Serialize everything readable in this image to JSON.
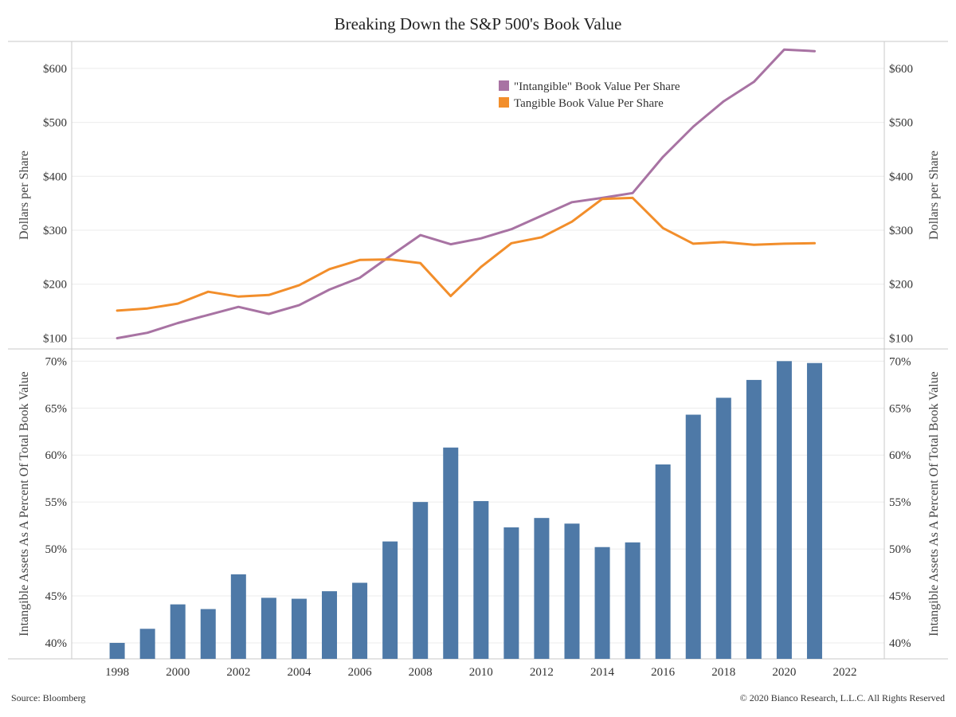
{
  "title": "Breaking Down the S&P 500's Book Value",
  "colors": {
    "intangible": "#a873a3",
    "tangible": "#f28e2b",
    "bar": "#4e79a7",
    "grid": "#ebebeb",
    "axis": "#c8c8c8"
  },
  "footer": {
    "source": "Source: Bloomberg",
    "copyright": "© 2020 Bianco Research, L.L.C. All Rights Reserved"
  },
  "chart_data": [
    {
      "type": "line",
      "ylabel": "Dollars per Share",
      "ylabel_right": "Dollars per Share",
      "ylim": [
        80,
        650
      ],
      "yticks": [
        100,
        200,
        300,
        400,
        500,
        600
      ],
      "ytick_labels": [
        "$100",
        "$200",
        "$300",
        "$400",
        "$500",
        "$600"
      ],
      "x": [
        1998,
        1999,
        2000,
        2001,
        2002,
        2003,
        2004,
        2005,
        2006,
        2007,
        2008,
        2009,
        2010,
        2011,
        2012,
        2013,
        2014,
        2015,
        2016,
        2017,
        2018,
        2019,
        2020,
        2021
      ],
      "legend_position": "top-center",
      "series": [
        {
          "name": "\"Intangible\" Book Value Per Share",
          "color_key": "intangible",
          "values": [
            100,
            110,
            128,
            143,
            158,
            145,
            161,
            190,
            212,
            252,
            291,
            274,
            285,
            302,
            327,
            352,
            360,
            369,
            436,
            492,
            539,
            575,
            635,
            632
          ]
        },
        {
          "name": "Tangible Book Value Per Share",
          "color_key": "tangible",
          "values": [
            151,
            155,
            164,
            186,
            177,
            180,
            198,
            228,
            245,
            246,
            239,
            178,
            232,
            276,
            287,
            316,
            358,
            360,
            304,
            275,
            278,
            273,
            275,
            276
          ]
        }
      ]
    },
    {
      "type": "bar",
      "ylabel": "Intangible Assets As A Percent Of Total Book Value",
      "ylabel_right": "Intangible Assets As A Percent Of Total Book Value",
      "ylim": [
        38.3,
        71.3
      ],
      "yticks": [
        40,
        45,
        50,
        55,
        60,
        65,
        70
      ],
      "ytick_labels": [
        "40%",
        "45%",
        "50%",
        "55%",
        "60%",
        "65%",
        "70%"
      ],
      "x": [
        1998,
        1999,
        2000,
        2001,
        2002,
        2003,
        2004,
        2005,
        2006,
        2007,
        2008,
        2009,
        2010,
        2011,
        2012,
        2013,
        2014,
        2015,
        2016,
        2017,
        2018,
        2019,
        2020,
        2021
      ],
      "values": [
        40.0,
        41.5,
        44.1,
        43.6,
        47.3,
        44.8,
        44.7,
        45.5,
        46.4,
        50.8,
        55.0,
        60.8,
        55.1,
        52.3,
        53.3,
        52.7,
        50.2,
        50.7,
        59.0,
        64.3,
        66.1,
        68.0,
        70.0,
        69.8
      ],
      "xticks": [
        1998,
        2000,
        2002,
        2004,
        2006,
        2008,
        2010,
        2012,
        2014,
        2016,
        2018,
        2020,
        2022
      ],
      "xtick_labels": [
        "1998",
        "2000",
        "2002",
        "2004",
        "2006",
        "2008",
        "2010",
        "2012",
        "2014",
        "2016",
        "2018",
        "2020",
        "2022"
      ]
    }
  ]
}
